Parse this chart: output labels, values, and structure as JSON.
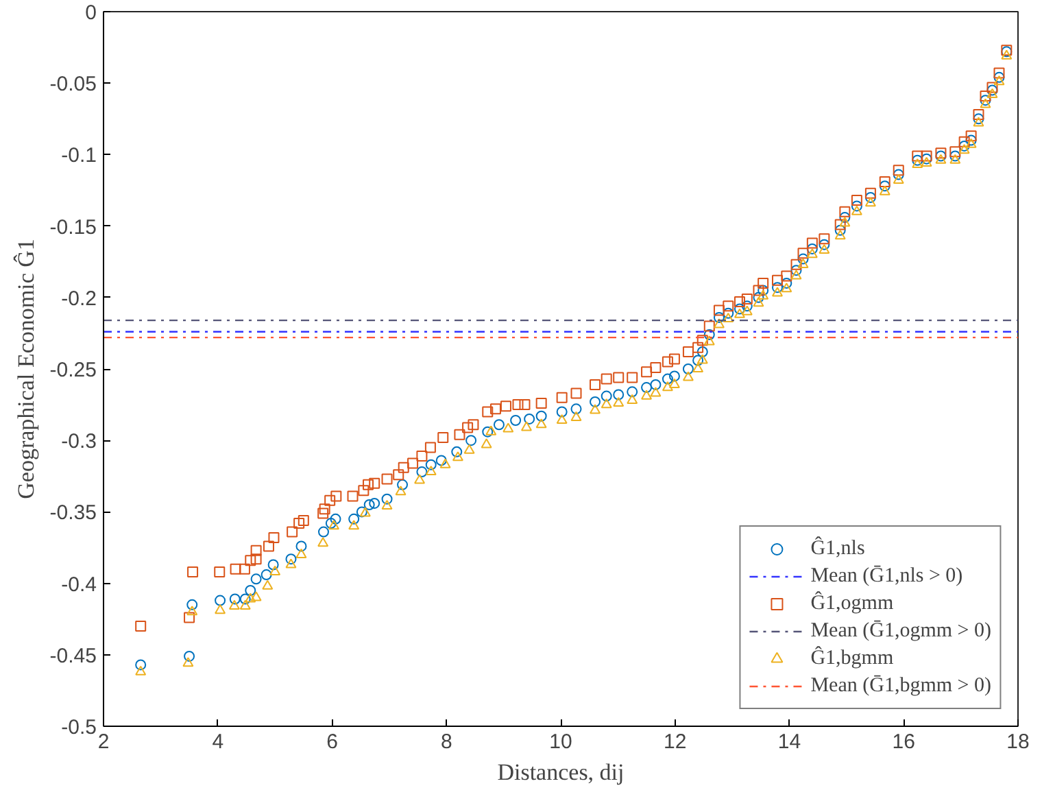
{
  "chart_data": {
    "type": "scatter",
    "xlabel": "Distances, dij",
    "ylabel": "Geographical Economic Ĝ1",
    "xlim": [
      2,
      18
    ],
    "ylim": [
      -0.5,
      0
    ],
    "xticks": [
      2,
      4,
      6,
      8,
      10,
      12,
      14,
      16,
      18
    ],
    "yticks": [
      0,
      -0.05,
      -0.1,
      -0.15,
      -0.2,
      -0.25,
      -0.3,
      -0.35,
      -0.4,
      -0.45,
      -0.5
    ],
    "grid": false,
    "legend": "bottom right",
    "series": [
      {
        "name": "Ĝ1,nls",
        "color": "#0072bd",
        "marker": "circle",
        "x": [
          2.65,
          3.5,
          3.55,
          4.04,
          4.3,
          4.48,
          4.57,
          4.67,
          4.85,
          4.97,
          5.28,
          5.46,
          5.85,
          5.98,
          6.06,
          6.38,
          6.52,
          6.65,
          6.74,
          6.96,
          7.23,
          7.57,
          7.73,
          7.91,
          8.18,
          8.43,
          8.72,
          8.92,
          9.21,
          9.45,
          9.66,
          10.02,
          10.27,
          10.6,
          10.8,
          11.01,
          11.25,
          11.5,
          11.66,
          11.87,
          11.99,
          12.23,
          12.4,
          12.48,
          12.6,
          12.77,
          12.93,
          13.13,
          13.26,
          13.46,
          13.54,
          13.79,
          13.95,
          14.12,
          14.24,
          14.4,
          14.61,
          14.89,
          14.97,
          15.18,
          15.42,
          15.67,
          15.91,
          16.24,
          16.4,
          16.65,
          16.9,
          17.06,
          17.18,
          17.31,
          17.43,
          17.55,
          17.67,
          17.8
        ],
        "values": [
          -0.457,
          -0.451,
          -0.415,
          -0.412,
          -0.411,
          -0.411,
          -0.405,
          -0.397,
          -0.394,
          -0.387,
          -0.383,
          -0.374,
          -0.364,
          -0.358,
          -0.355,
          -0.355,
          -0.35,
          -0.345,
          -0.344,
          -0.341,
          -0.331,
          -0.322,
          -0.317,
          -0.314,
          -0.308,
          -0.3,
          -0.294,
          -0.289,
          -0.286,
          -0.285,
          -0.283,
          -0.28,
          -0.278,
          -0.273,
          -0.269,
          -0.268,
          -0.266,
          -0.263,
          -0.261,
          -0.257,
          -0.255,
          -0.25,
          -0.244,
          -0.238,
          -0.226,
          -0.214,
          -0.211,
          -0.208,
          -0.206,
          -0.2,
          -0.195,
          -0.193,
          -0.19,
          -0.181,
          -0.173,
          -0.166,
          -0.163,
          -0.153,
          -0.144,
          -0.136,
          -0.13,
          -0.122,
          -0.114,
          -0.104,
          -0.103,
          -0.101,
          -0.101,
          -0.094,
          -0.09,
          -0.075,
          -0.062,
          -0.055,
          -0.046,
          -0.028
        ]
      },
      {
        "name": "Ĝ1,ogmm",
        "color": "#d95319",
        "marker": "square",
        "x": [
          2.65,
          3.5,
          3.56,
          4.03,
          4.31,
          4.47,
          4.57,
          4.67,
          4.67,
          4.89,
          4.98,
          5.3,
          5.42,
          5.5,
          5.84,
          5.87,
          5.96,
          6.07,
          6.36,
          6.55,
          6.63,
          6.74,
          6.96,
          7.16,
          7.25,
          7.41,
          7.57,
          7.72,
          7.94,
          8.23,
          8.37,
          8.47,
          8.72,
          8.86,
          9.04,
          9.25,
          9.37,
          9.66,
          10.02,
          10.27,
          10.6,
          10.8,
          11.01,
          11.25,
          11.5,
          11.66,
          11.87,
          11.99,
          12.23,
          12.4,
          12.48,
          12.6,
          12.77,
          12.93,
          13.13,
          13.26,
          13.46,
          13.54,
          13.79,
          13.95,
          14.12,
          14.24,
          14.4,
          14.61,
          14.89,
          14.97,
          15.18,
          15.42,
          15.67,
          15.91,
          16.24,
          16.4,
          16.65,
          16.9,
          17.06,
          17.18,
          17.31,
          17.43,
          17.55,
          17.67,
          17.8
        ],
        "values": [
          -0.43,
          -0.424,
          -0.392,
          -0.392,
          -0.39,
          -0.39,
          -0.384,
          -0.383,
          -0.377,
          -0.374,
          -0.368,
          -0.364,
          -0.358,
          -0.356,
          -0.351,
          -0.348,
          -0.342,
          -0.339,
          -0.339,
          -0.335,
          -0.331,
          -0.33,
          -0.327,
          -0.324,
          -0.319,
          -0.316,
          -0.311,
          -0.305,
          -0.298,
          -0.296,
          -0.291,
          -0.289,
          -0.28,
          -0.278,
          -0.276,
          -0.275,
          -0.275,
          -0.274,
          -0.27,
          -0.267,
          -0.261,
          -0.257,
          -0.256,
          -0.256,
          -0.252,
          -0.249,
          -0.245,
          -0.243,
          -0.238,
          -0.235,
          -0.23,
          -0.22,
          -0.209,
          -0.206,
          -0.203,
          -0.201,
          -0.195,
          -0.19,
          -0.188,
          -0.185,
          -0.177,
          -0.169,
          -0.162,
          -0.159,
          -0.149,
          -0.14,
          -0.132,
          -0.127,
          -0.119,
          -0.111,
          -0.101,
          -0.101,
          -0.099,
          -0.098,
          -0.091,
          -0.087,
          -0.072,
          -0.059,
          -0.053,
          -0.043,
          -0.027
        ]
      },
      {
        "name": "Ĝ1,bgmm",
        "color": "#edb120",
        "marker": "triangle",
        "x": [
          2.65,
          3.48,
          3.55,
          4.04,
          4.29,
          4.48,
          4.57,
          4.67,
          4.87,
          5.0,
          5.28,
          5.46,
          5.84,
          6.03,
          6.38,
          6.58,
          6.96,
          7.2,
          7.53,
          7.73,
          7.98,
          8.2,
          8.4,
          8.7,
          8.78,
          9.08,
          9.4,
          9.66,
          10.02,
          10.27,
          10.6,
          10.8,
          11.01,
          11.25,
          11.5,
          11.66,
          11.87,
          11.99,
          12.23,
          12.4,
          12.48,
          12.6,
          12.77,
          12.93,
          13.13,
          13.26,
          13.46,
          13.54,
          13.79,
          13.95,
          14.12,
          14.24,
          14.4,
          14.61,
          14.89,
          14.97,
          15.18,
          15.42,
          15.67,
          15.91,
          16.24,
          16.4,
          16.65,
          16.9,
          17.06,
          17.18,
          17.31,
          17.43,
          17.55,
          17.67,
          17.8
        ],
        "values": [
          -0.462,
          -0.456,
          -0.42,
          -0.419,
          -0.416,
          -0.416,
          -0.411,
          -0.41,
          -0.402,
          -0.392,
          -0.387,
          -0.38,
          -0.372,
          -0.36,
          -0.36,
          -0.351,
          -0.346,
          -0.336,
          -0.328,
          -0.322,
          -0.317,
          -0.312,
          -0.307,
          -0.303,
          -0.294,
          -0.292,
          -0.291,
          -0.289,
          -0.286,
          -0.284,
          -0.279,
          -0.275,
          -0.274,
          -0.272,
          -0.269,
          -0.267,
          -0.263,
          -0.261,
          -0.256,
          -0.25,
          -0.244,
          -0.231,
          -0.219,
          -0.215,
          -0.212,
          -0.21,
          -0.204,
          -0.199,
          -0.197,
          -0.194,
          -0.185,
          -0.177,
          -0.17,
          -0.167,
          -0.157,
          -0.148,
          -0.14,
          -0.134,
          -0.126,
          -0.118,
          -0.107,
          -0.106,
          -0.104,
          -0.104,
          -0.097,
          -0.093,
          -0.078,
          -0.065,
          -0.058,
          -0.049,
          -0.031
        ]
      }
    ],
    "ref_lines": [
      {
        "axis": "y",
        "value": -0.224,
        "label": "Mean (Ḡ1,nls > 0)",
        "color": "#3333ff",
        "line_style": "dashdot"
      },
      {
        "axis": "y",
        "value": -0.216,
        "label": "Mean (Ḡ1,ogmm > 0)",
        "color": "#555577",
        "line_style": "dashdot"
      },
      {
        "axis": "y",
        "value": -0.228,
        "label": "Mean (Ḡ1,bgmm > 0)",
        "color": "#ff5533",
        "line_style": "dashdot"
      }
    ]
  }
}
